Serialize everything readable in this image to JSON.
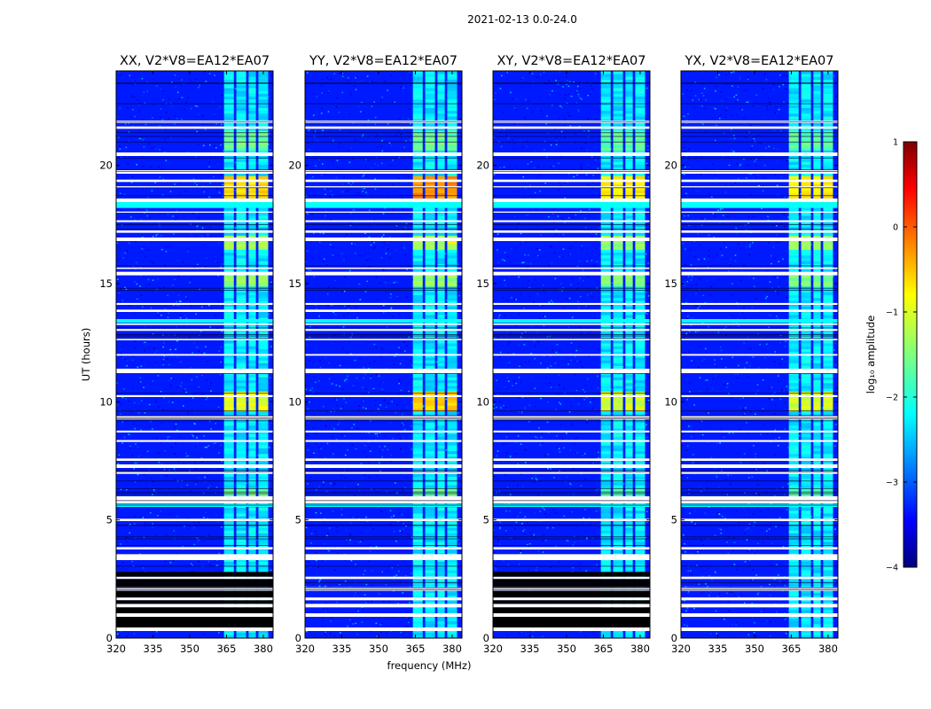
{
  "chart_data": {
    "type": "heatmap",
    "title": "2021-02-13 0.0-24.0",
    "xlabel": "frequency (MHz)",
    "ylabel": "UT (hours)",
    "xlim": [
      320,
      384
    ],
    "ylim": [
      0,
      24
    ],
    "x_ticks": [
      320,
      335,
      350,
      365,
      380
    ],
    "y_ticks": [
      0,
      5,
      10,
      15,
      20
    ],
    "colorbar": {
      "label": "log₁₀ amplitude",
      "range": [
        -4,
        1
      ],
      "ticks": [
        -4,
        -3,
        -2,
        -1,
        0,
        1
      ],
      "colormap": "jet"
    },
    "panels": [
      {
        "title": "XX, V2*V8=EA12*EA07",
        "black_gaps": true
      },
      {
        "title": "YY, V2*V8=EA12*EA07",
        "black_gaps": false
      },
      {
        "title": "XY, V2*V8=EA12*EA07",
        "black_gaps": true
      },
      {
        "title": "YX, V2*V8=EA12*EA07",
        "black_gaps": false
      }
    ],
    "bright_channels_mhz": [
      [
        364,
        368
      ],
      [
        369,
        373
      ],
      [
        374,
        377
      ],
      [
        378,
        382
      ]
    ],
    "white_gaps_hours": [
      [
        0.3,
        0.45
      ],
      [
        0.9,
        1.05
      ],
      [
        1.3,
        1.45
      ],
      [
        1.6,
        1.72
      ],
      [
        2.0,
        2.15
      ],
      [
        2.5,
        2.6
      ],
      [
        3.3,
        3.55
      ],
      [
        3.75,
        3.85
      ],
      [
        4.95,
        5.05
      ],
      [
        5.7,
        6.0
      ],
      [
        6.95,
        7.05
      ],
      [
        7.2,
        7.35
      ],
      [
        7.5,
        7.6
      ],
      [
        8.3,
        8.38
      ],
      [
        8.7,
        8.78
      ],
      [
        9.25,
        9.4
      ],
      [
        10.2,
        10.28
      ],
      [
        11.2,
        11.4
      ],
      [
        11.95,
        12.02
      ],
      [
        12.6,
        12.68
      ],
      [
        13.0,
        13.08
      ],
      [
        13.25,
        13.32
      ],
      [
        13.8,
        13.9
      ],
      [
        14.1,
        14.18
      ],
      [
        15.35,
        15.5
      ],
      [
        15.62,
        15.68
      ],
      [
        16.8,
        16.95
      ],
      [
        17.15,
        17.25
      ],
      [
        17.6,
        17.68
      ],
      [
        18.0,
        18.05
      ],
      [
        18.45,
        18.6
      ],
      [
        19.05,
        19.12
      ],
      [
        19.3,
        19.4
      ],
      [
        19.65,
        19.8
      ],
      [
        20.4,
        20.55
      ],
      [
        21.55,
        21.65
      ],
      [
        21.8,
        21.9
      ]
    ],
    "black_gaps_hours": [
      [
        0.45,
        0.9
      ],
      [
        1.05,
        1.3
      ],
      [
        1.45,
        1.6
      ],
      [
        1.72,
        2.0
      ],
      [
        2.15,
        2.5
      ],
      [
        2.6,
        2.8
      ]
    ],
    "cyan_bands_hours": [
      [
        5.55,
        5.68
      ],
      [
        13.35,
        13.5
      ],
      [
        18.2,
        18.45
      ]
    ],
    "bright_episodes_hours": [
      {
        "range": [
          6.05,
          6.4
        ],
        "log_amp": -1.6
      },
      {
        "range": [
          9.6,
          10.4
        ],
        "log_amp": -1.0
      },
      {
        "range": [
          14.9,
          15.3
        ],
        "log_amp": -1.4
      },
      {
        "range": [
          16.5,
          17.0
        ],
        "log_amp": -1.3
      },
      {
        "range": [
          18.6,
          19.6
        ],
        "log_amp": -0.7
      },
      {
        "range": [
          20.6,
          21.5
        ],
        "log_amp": -1.6
      }
    ]
  }
}
